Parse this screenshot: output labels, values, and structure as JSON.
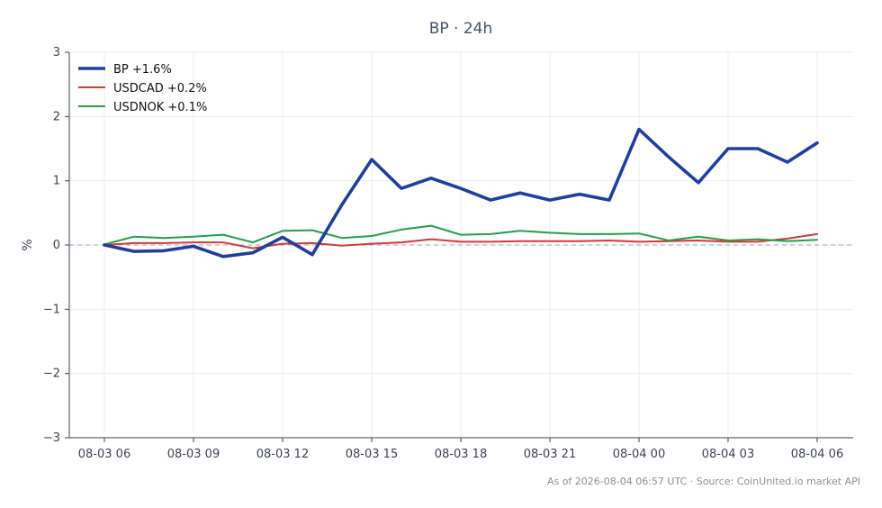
{
  "chart_data": {
    "type": "line",
    "title": "BP · 24h",
    "xlabel": "",
    "ylabel": "%",
    "ylim": [
      -3,
      3
    ],
    "yticks": [
      3,
      2,
      1,
      0,
      -1,
      -2,
      -3
    ],
    "ytick_labels": [
      "3",
      "2",
      "1",
      "0",
      "−1",
      "−2",
      "−3"
    ],
    "x_tick_labels": [
      "08-03 06",
      "08-03 09",
      "08-03 12",
      "08-03 15",
      "08-03 18",
      "08-03 21",
      "08-04 00",
      "08-04 03",
      "08-04 06"
    ],
    "x_tick_hours": [
      0,
      3,
      6,
      9,
      12,
      15,
      18,
      21,
      24
    ],
    "x_hours": [
      0,
      1,
      2,
      3,
      4,
      5,
      6,
      7,
      8,
      9,
      10,
      11,
      12,
      13,
      14,
      15,
      16,
      17,
      18,
      19,
      20,
      21,
      22,
      23,
      24
    ],
    "grid": true,
    "zero_line": true,
    "legend_position": "top-left",
    "series": [
      {
        "name": "BP +1.6%",
        "color": "#1f3f9e",
        "width": "bold",
        "values": [
          0.0,
          -0.1,
          -0.09,
          -0.02,
          -0.18,
          -0.12,
          0.12,
          -0.15,
          0.63,
          1.33,
          0.88,
          1.04,
          0.88,
          0.7,
          0.81,
          0.7,
          0.79,
          0.7,
          1.8,
          1.37,
          0.97,
          1.5,
          1.5,
          1.29,
          1.59
        ]
      },
      {
        "name": "USDCAD +0.2%",
        "color": "#d03a3a",
        "width": "normal",
        "values": [
          0.0,
          0.03,
          0.03,
          0.04,
          0.04,
          -0.05,
          0.02,
          0.03,
          -0.01,
          0.02,
          0.04,
          0.09,
          0.05,
          0.05,
          0.06,
          0.06,
          0.06,
          0.07,
          0.05,
          0.06,
          0.07,
          0.05,
          0.05,
          0.1,
          0.17
        ]
      },
      {
        "name": "USDNOK +0.1%",
        "color": "#23a04a",
        "width": "normal",
        "values": [
          0.01,
          0.13,
          0.11,
          0.13,
          0.16,
          0.04,
          0.22,
          0.23,
          0.11,
          0.14,
          0.24,
          0.3,
          0.16,
          0.17,
          0.22,
          0.19,
          0.17,
          0.17,
          0.18,
          0.07,
          0.13,
          0.07,
          0.09,
          0.06,
          0.08
        ]
      }
    ]
  },
  "footer": "As of 2026-08-04 06:57 UTC · Source: CoinUnited.io market API"
}
